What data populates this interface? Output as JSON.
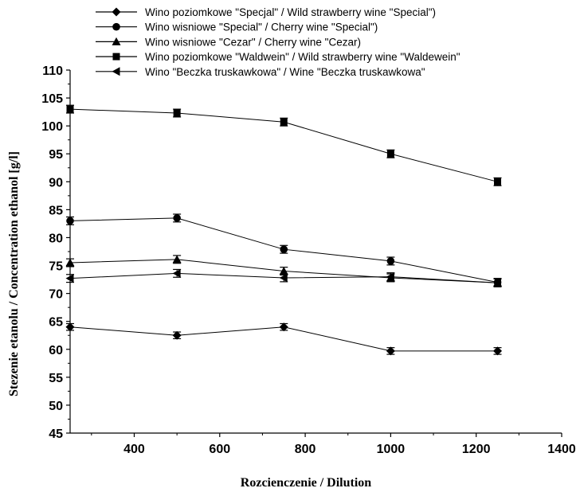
{
  "chart_data": {
    "type": "line",
    "title": "",
    "xlabel": "Rozcienczenie / Dilution",
    "ylabel": "Stezenie etanolu / Concentration ethanol [g/l]",
    "xlim": [
      250,
      1400
    ],
    "ylim": [
      45,
      110
    ],
    "xticks": [
      400,
      600,
      800,
      1000,
      1200,
      1400
    ],
    "yticks": [
      45,
      50,
      55,
      60,
      65,
      70,
      75,
      80,
      85,
      90,
      95,
      100,
      105,
      110
    ],
    "grid": false,
    "legend_position": "top",
    "x": [
      250,
      500,
      750,
      1000,
      1250
    ],
    "series": [
      {
        "name": "Wino poziomkowe \"Specjal\" / Wild strawberry wine \"Special\")",
        "marker": "diamond",
        "values": [
          64.0,
          62.5,
          64.0,
          59.7,
          59.7
        ],
        "errors": [
          0.6,
          0.6,
          0.6,
          0.6,
          0.6
        ]
      },
      {
        "name": "Wino wisniowe \"Special\" / Cherry wine \"Special\")",
        "marker": "circle",
        "values": [
          83.0,
          83.5,
          77.9,
          75.8,
          72.0
        ],
        "errors": [
          0.7,
          0.7,
          0.7,
          0.7,
          0.7
        ]
      },
      {
        "name": "Wino wisniowe \"Cezar\" / Cherry wine \"Cezar)",
        "marker": "triangle-up",
        "values": [
          75.5,
          76.1,
          74.0,
          72.8,
          71.9
        ],
        "errors": [
          0.7,
          0.7,
          0.7,
          0.7,
          0.7
        ]
      },
      {
        "name": "Wino poziomkowe \"Waldwein\" / Wild strawberry wine \"Waldewein\"",
        "marker": "square",
        "values": [
          103.0,
          102.3,
          100.7,
          95.0,
          90.0
        ],
        "errors": [
          0.7,
          0.7,
          0.7,
          0.7,
          0.7
        ]
      },
      {
        "name": "Wino \"Beczka truskawkowa\" / Wine \"Beczka truskawkowa\"",
        "marker": "triangle-left",
        "values": [
          72.7,
          73.6,
          72.8,
          73.0,
          71.9
        ],
        "errors": [
          0.7,
          0.7,
          0.7,
          0.7,
          0.7
        ]
      }
    ]
  }
}
